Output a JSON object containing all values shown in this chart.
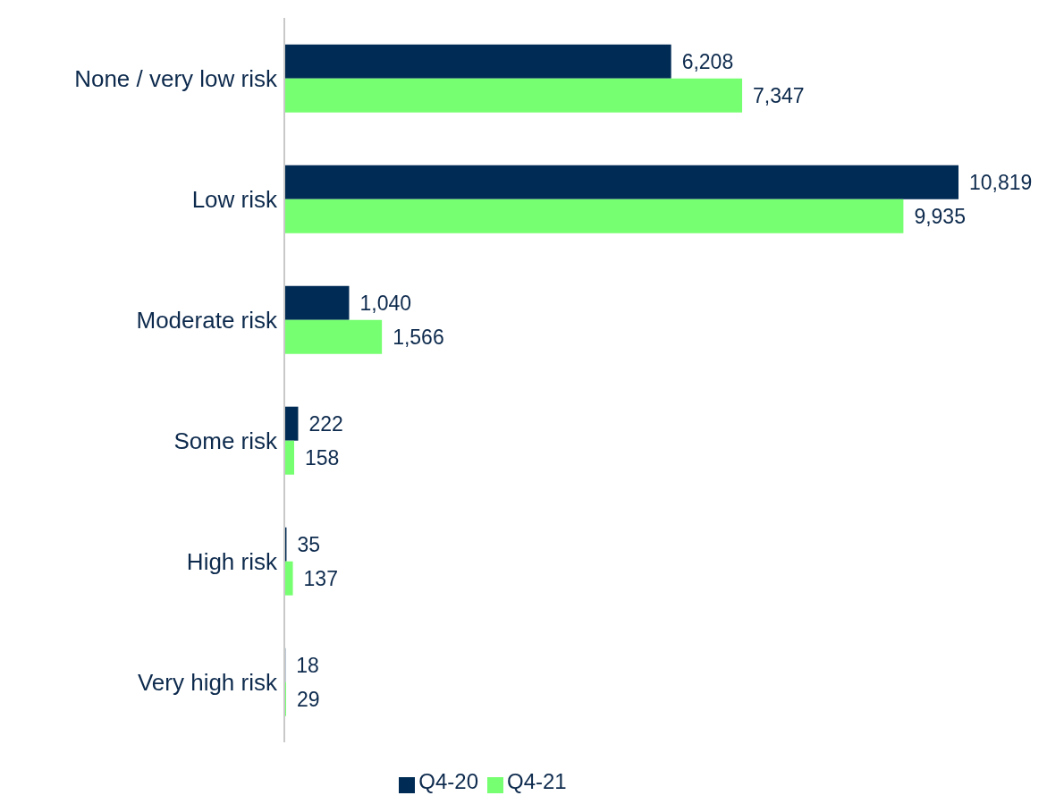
{
  "chart_data": {
    "type": "bar",
    "orientation": "horizontal",
    "categories": [
      "None / very low risk",
      "Low risk",
      "Moderate risk",
      "Some risk",
      "High risk",
      "Very high risk"
    ],
    "series": [
      {
        "name": "Q4-20",
        "color": "#002b54",
        "values": [
          6208,
          10819,
          1040,
          222,
          35,
          18
        ],
        "value_labels": [
          "6,208",
          "10,819",
          "1,040",
          "222",
          "35",
          "18"
        ]
      },
      {
        "name": "Q4-21",
        "color": "#76ff70",
        "values": [
          7347,
          9935,
          1566,
          158,
          137,
          29
        ],
        "value_labels": [
          "7,347",
          "9,935",
          "1,566",
          "158",
          "137",
          "29"
        ]
      }
    ],
    "legend": "bottom",
    "grid": false
  }
}
